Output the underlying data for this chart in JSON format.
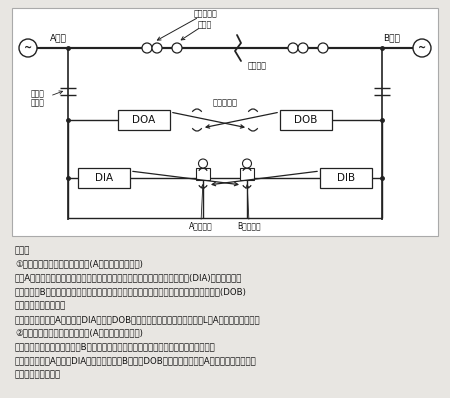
{
  "bg_color": "#e8e6e2",
  "diagram_bg": "#ffffff",
  "lc": "#222222",
  "tc": "#111111",
  "fig_w": 4.5,
  "fig_h": 3.98,
  "dpi": 100,
  "note_lines": [
    "〔注〕",
    "①　内部事故判定のメカニズム(A端子について説明)",
    "　・A端子では送電線内部に事故が発生しているので、内部方向検出継電器(DIA)が動作する。",
    "　・また、B端子からみても、送電線内部に事故が発生しているので外部方向検出継電器(DOB)",
    "　　は不動作である。",
    "　・したがって、A端子ではDIA動作、DOB不動作の場合、内部事故と判定L・A端子を遥断する。",
    "②　外部事故判定のメカニズム(A端子について説明)",
    "　・図には示していないが、B端子の背後の事故、すなわち送電線外部事故を考える。",
    "　・この場合はA端子のDIAが動作しても、B端子のDOBが動作するので、A端子としては外部事",
    "　　故と判定する。"
  ]
}
